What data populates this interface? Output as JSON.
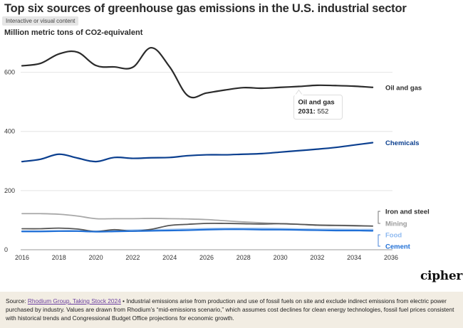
{
  "header": {
    "title": "Top six sources of greenhouse gas emissions in the U.S. industrial sector",
    "badge": "Interactive or visual content",
    "subtitle": "Million metric tons of CO2-equivalent"
  },
  "brand": {
    "logo": "cipher"
  },
  "footer": {
    "source_prefix": "Source: ",
    "source_link": "Rhodium Group, Taking Stock 2024",
    "source_text": " • Industrial emissions arise from production and use of fossil fuels on site and exclude indirect emissions from electric power purchased by industry. Values are drawn from Rhodium’s “mid-emissions scenario,” which assumes cost declines for clean energy technologies, fossil fuel prices consistent with historical trends and Congressional Budget Office projections for economic growth."
  },
  "tooltip": {
    "series": "Oil and gas",
    "year": "2031",
    "value": "552"
  },
  "chart_data": {
    "type": "line",
    "title": "Top six sources of greenhouse gas emissions in the U.S. industrial sector",
    "ylabel": "Million metric tons of CO2-equivalent",
    "xlim": [
      2016,
      2036
    ],
    "ylim": [
      0,
      700
    ],
    "x_ticks": [
      2016,
      2018,
      2020,
      2022,
      2024,
      2026,
      2028,
      2030,
      2032,
      2034,
      2036
    ],
    "y_ticks": [
      0,
      200,
      400,
      600
    ],
    "grid": "horizontal",
    "legend": "direct labels at right",
    "x": [
      2016,
      2017,
      2018,
      2019,
      2020,
      2021,
      2022,
      2023,
      2024,
      2025,
      2026,
      2027,
      2028,
      2029,
      2030,
      2031,
      2032,
      2033,
      2034,
      2035
    ],
    "series": [
      {
        "name": "Oil and gas",
        "color": "#2b2b2b",
        "values": [
          622,
          630,
          662,
          668,
          623,
          618,
          617,
          683,
          618,
          520,
          530,
          540,
          548,
          546,
          549,
          552,
          556,
          555,
          553,
          549
        ]
      },
      {
        "name": "Chemicals",
        "color": "#0b3f8f",
        "values": [
          298,
          306,
          323,
          310,
          298,
          312,
          309,
          311,
          312,
          318,
          321,
          321,
          323,
          325,
          330,
          335,
          340,
          346,
          354,
          362
        ]
      },
      {
        "name": "Iron and steel",
        "color": "#555555",
        "values": [
          71,
          71,
          73,
          70,
          62,
          68,
          63,
          69,
          82,
          86,
          89,
          89,
          88,
          87,
          88,
          86,
          83,
          82,
          81,
          80
        ]
      },
      {
        "name": "Mining",
        "color": "#a8a8a8",
        "values": [
          122,
          122,
          120,
          114,
          105,
          105,
          105,
          106,
          105,
          104,
          102,
          98,
          94,
          91,
          88,
          86,
          84,
          83,
          82,
          80
        ]
      },
      {
        "name": "Food",
        "color": "#a9c9ef",
        "values": [
          62,
          62,
          63,
          63,
          62,
          64,
          66,
          67,
          68,
          70,
          71,
          72,
          72,
          72,
          71,
          70,
          69,
          69,
          68,
          68
        ]
      },
      {
        "name": "Cement",
        "color": "#1f6fd6",
        "values": [
          62,
          62,
          63,
          63,
          61,
          62,
          63,
          64,
          65,
          66,
          68,
          69,
          69,
          68,
          68,
          67,
          66,
          65,
          65,
          64
        ]
      }
    ]
  }
}
